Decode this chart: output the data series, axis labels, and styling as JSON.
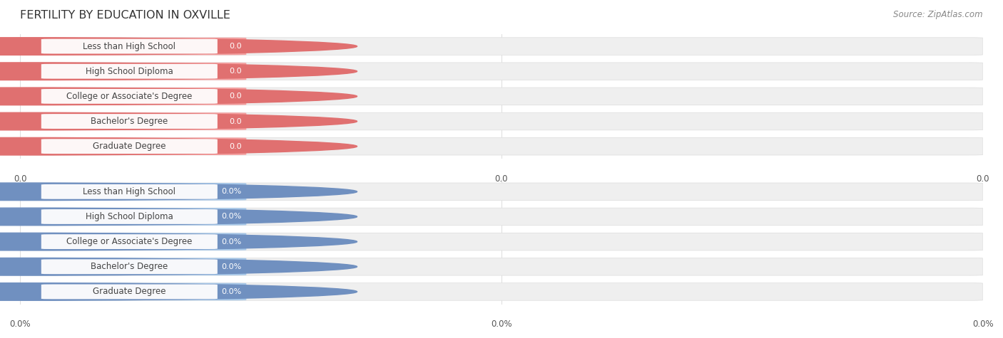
{
  "title": "FERTILITY BY EDUCATION IN OXVILLE",
  "source": "Source: ZipAtlas.com",
  "categories": [
    "Less than High School",
    "High School Diploma",
    "College or Associate's Degree",
    "Bachelor's Degree",
    "Graduate Degree"
  ],
  "top_values": [
    0.0,
    0.0,
    0.0,
    0.0,
    0.0
  ],
  "bottom_values": [
    0.0,
    0.0,
    0.0,
    0.0,
    0.0
  ],
  "top_bar_color": "#F4A0A0",
  "bottom_bar_color": "#A8C8E8",
  "top_label_color": "#444444",
  "bottom_label_color": "#444444",
  "top_value_color": "#FFFFFF",
  "bottom_value_color": "#FFFFFF",
  "title_color": "#333333",
  "source_color": "#888888",
  "background_color": "#FFFFFF",
  "bar_bg_color": "#EFEFEF",
  "grid_color": "#DDDDDD",
  "top_accent_color": "#E07070",
  "bottom_accent_color": "#7090C0",
  "xticks_top_labels": [
    "0.0",
    "0.0",
    "0.0"
  ],
  "xticks_bottom_labels": [
    "0.0%",
    "0.0%",
    "0.0%"
  ],
  "font_size_title": 11.5,
  "font_size_labels": 8.5,
  "font_size_values": 8.0,
  "font_size_ticks": 8.5,
  "font_size_source": 8.5
}
